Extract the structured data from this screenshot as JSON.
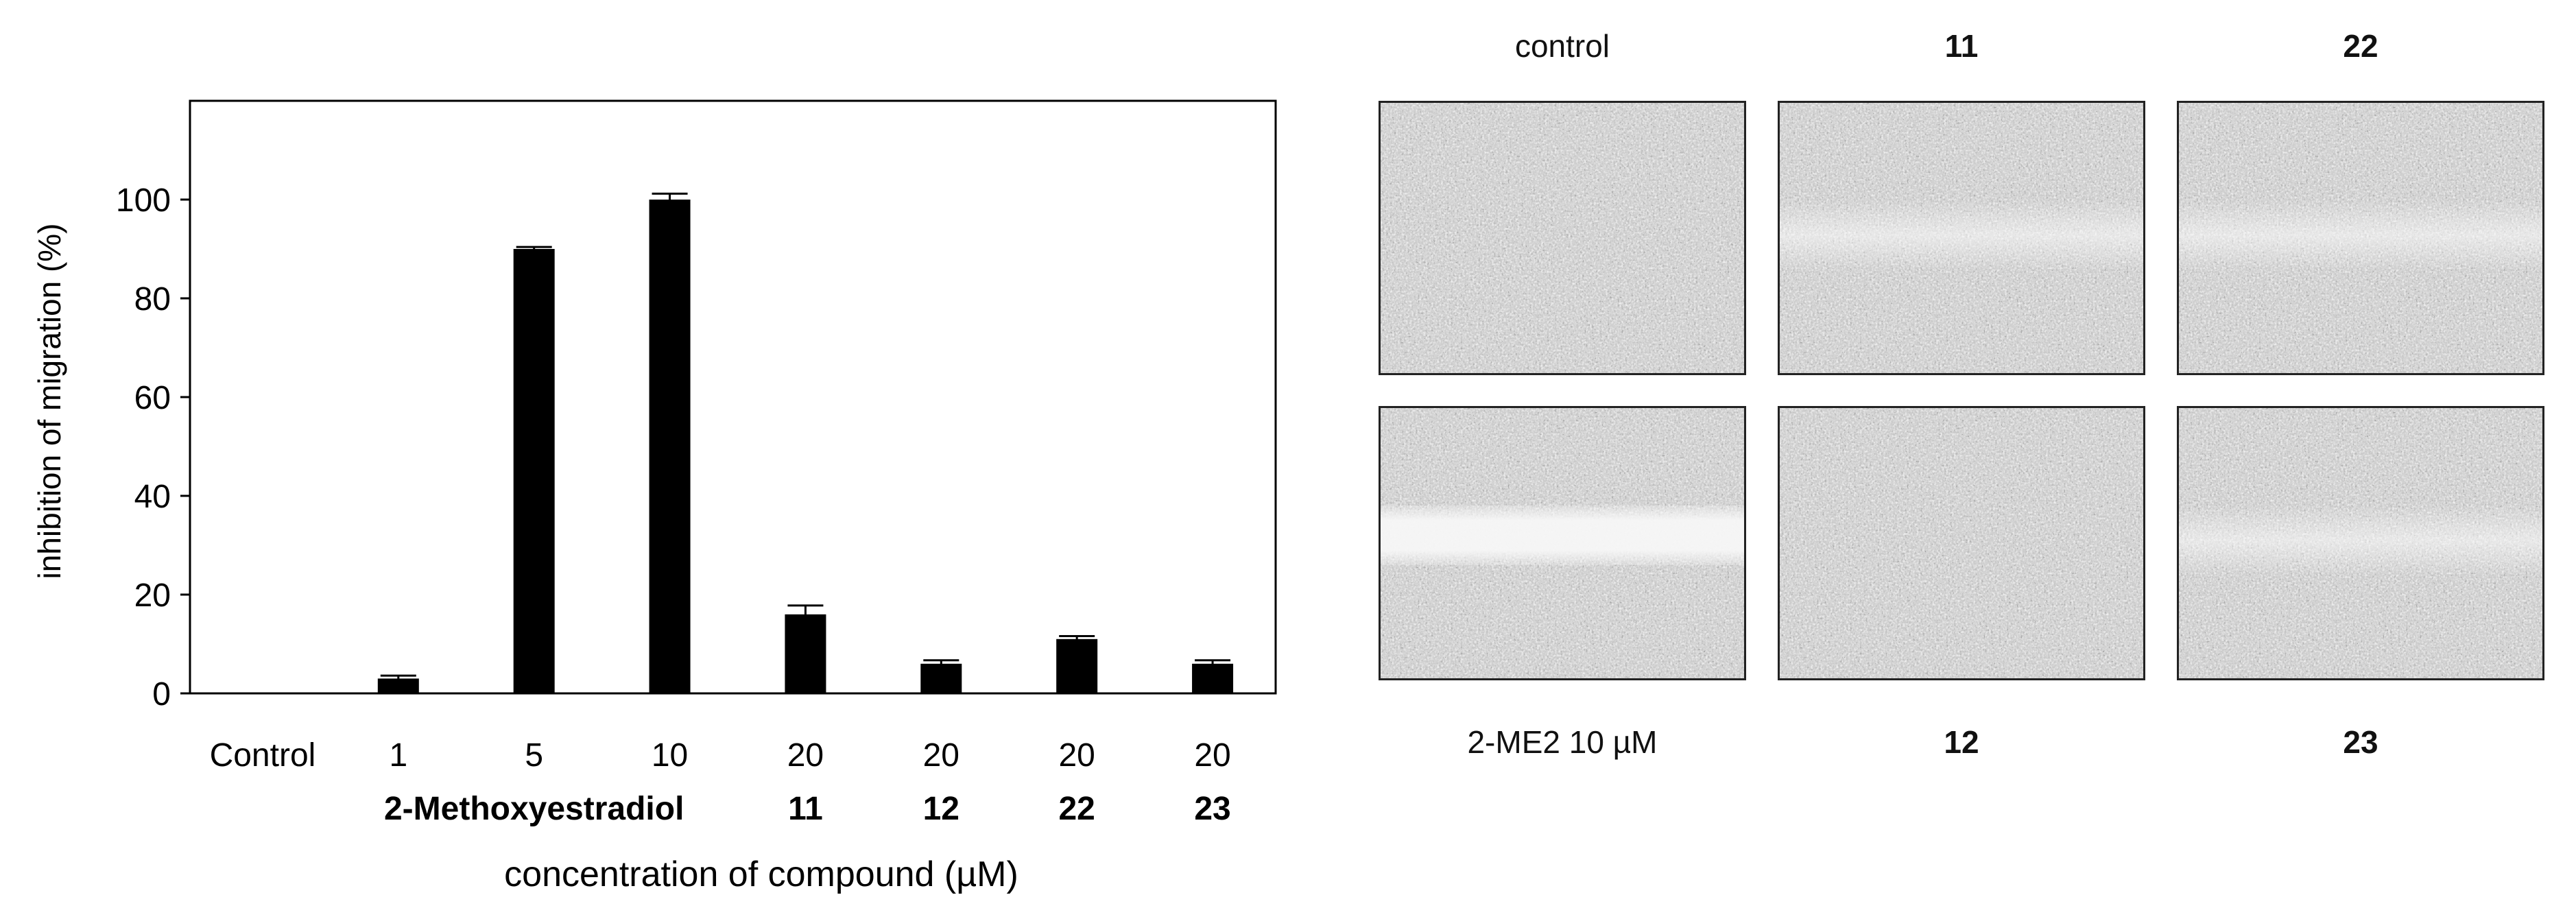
{
  "chart_data": {
    "type": "bar",
    "ylabel": "inhibition of migration (%)",
    "xlabel": "concentration of compound (µM)",
    "ylim": [
      0,
      120
    ],
    "yticks": [
      0,
      20,
      40,
      60,
      80,
      100
    ],
    "grid": false,
    "categories": [
      "Control",
      "1",
      "5",
      "10",
      "20",
      "20",
      "20",
      "20"
    ],
    "values": [
      0,
      3,
      90,
      100,
      16,
      6,
      11,
      6
    ],
    "errors": [
      0,
      0.6,
      0.4,
      1.2,
      1.8,
      0.7,
      0.6,
      0.7
    ],
    "bar_color": "#000000",
    "groups": [
      {
        "label": "2-Methoxyestradiol",
        "from": 1,
        "to": 3
      },
      {
        "label": "11",
        "from": 4,
        "to": 4
      },
      {
        "label": "12",
        "from": 5,
        "to": 5
      },
      {
        "label": "22",
        "from": 6,
        "to": 6
      },
      {
        "label": "23",
        "from": 7,
        "to": 7
      }
    ]
  },
  "panels": {
    "top": [
      {
        "label": "control",
        "bold": false,
        "gap": "none"
      },
      {
        "label": "11",
        "bold": true,
        "gap": "faint"
      },
      {
        "label": "22",
        "bold": true,
        "gap": "faint"
      }
    ],
    "bottom": [
      {
        "label": "2-ME2 10 µM",
        "bold": false,
        "gap": "wide"
      },
      {
        "label": "12",
        "bold": true,
        "gap": "none"
      },
      {
        "label": "23",
        "bold": true,
        "gap": "faint"
      }
    ]
  }
}
